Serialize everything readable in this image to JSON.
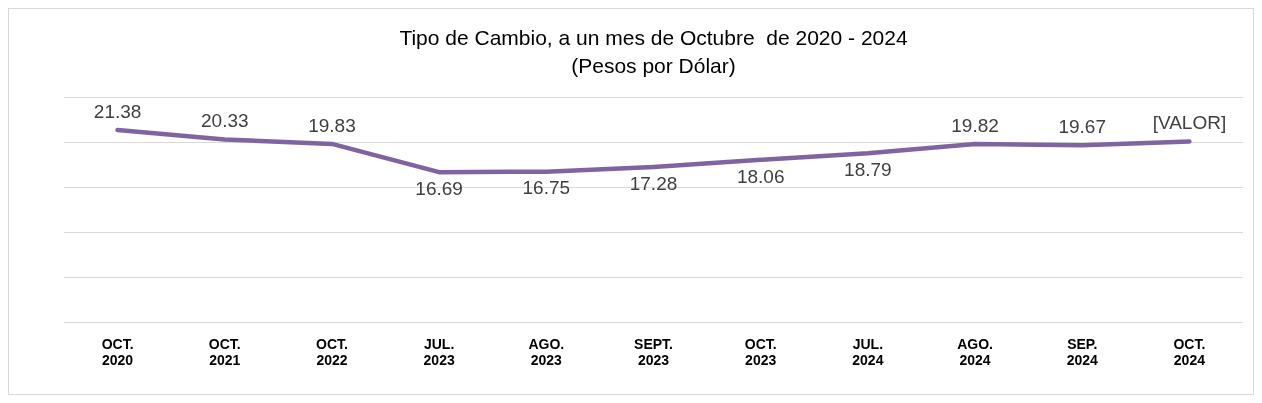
{
  "chart_data": {
    "type": "line",
    "title": "Tipo de Cambio, a un mes de Octubre  de 2020 - 2024",
    "subtitle": "(Pesos por Dólar)",
    "categories": [
      "OCT. 2020",
      "OCT. 2021",
      "OCT. 2022",
      "JUL. 2023",
      "AGO. 2023",
      "SEPT. 2023",
      "OCT. 2023",
      "JUL. 2024",
      "AGO. 2024",
      "SEP. 2024",
      "OCT. 2024"
    ],
    "series": [
      {
        "color": "#8064a2",
        "values": [
          21.38,
          20.33,
          19.83,
          16.69,
          16.75,
          17.28,
          18.06,
          18.79,
          19.82,
          19.67,
          20.1
        ],
        "value_labels": [
          "21.38",
          "20.33",
          "19.83",
          "16.69",
          "16.75",
          "17.28",
          "18.06",
          "18.79",
          "19.82",
          "19.67",
          "[VALOR]"
        ]
      }
    ],
    "ylim": [
      0,
      25
    ],
    "yticks": [
      {
        "value": 0,
        "label": null
      },
      {
        "value": 5,
        "label": null
      },
      {
        "value": 10,
        "label": null
      },
      {
        "value": 15,
        "label": null
      },
      {
        "value": 20,
        "label": null
      },
      {
        "value": 25,
        "label": null
      }
    ],
    "tick_labels": "x",
    "grid": "y",
    "legend": false,
    "marker": "none",
    "line_style": "solid"
  }
}
